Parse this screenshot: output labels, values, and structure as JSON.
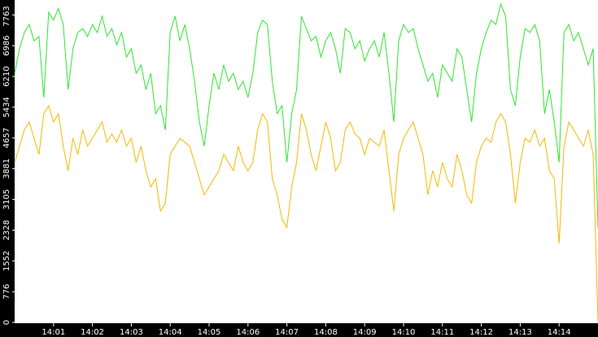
{
  "chart_data": {
    "type": "line",
    "x": [
      0,
      0.125,
      0.25,
      0.375,
      0.5,
      0.625,
      0.75,
      0.875,
      1,
      1.125,
      1.25,
      1.375,
      1.5,
      1.625,
      1.75,
      1.875,
      2,
      2.125,
      2.25,
      2.375,
      2.5,
      2.625,
      2.75,
      2.875,
      3,
      3.125,
      3.25,
      3.375,
      3.5,
      3.625,
      3.75,
      3.875,
      4,
      4.125,
      4.25,
      4.375,
      4.5,
      4.625,
      4.75,
      4.875,
      5,
      5.125,
      5.25,
      5.375,
      5.5,
      5.625,
      5.75,
      5.875,
      6,
      6.125,
      6.25,
      6.375,
      6.5,
      6.625,
      6.75,
      6.875,
      7,
      7.125,
      7.25,
      7.375,
      7.5,
      7.625,
      7.75,
      7.875,
      8,
      8.125,
      8.25,
      8.375,
      8.5,
      8.625,
      8.75,
      8.875,
      9,
      9.125,
      9.25,
      9.375,
      9.5,
      9.625,
      9.75,
      9.875,
      10,
      10.125,
      10.25,
      10.375,
      10.5,
      10.625,
      10.75,
      10.875,
      11,
      11.125,
      11.25,
      11.375,
      11.5,
      11.625,
      11.75,
      11.875,
      12,
      12.125,
      12.25,
      12.375,
      12.5,
      12.625,
      12.75,
      12.875,
      13,
      13.125,
      13.25,
      13.375,
      13.5,
      13.625,
      13.75,
      13.875,
      14,
      14.125,
      14.25,
      14.375,
      14.5,
      14.625,
      14.75,
      14.875,
      15
    ],
    "series": [
      {
        "color": "#2ee62e",
        "values": [
          6290,
          6910,
          7320,
          7520,
          7110,
          7220,
          5680,
          7830,
          7630,
          7930,
          7520,
          5880,
          6910,
          7320,
          7420,
          7220,
          7520,
          7320,
          7730,
          7220,
          7420,
          7010,
          7320,
          6700,
          6910,
          6290,
          6500,
          5880,
          6290,
          5270,
          5470,
          4860,
          7320,
          7730,
          7110,
          7520,
          6910,
          6090,
          5060,
          4450,
          5470,
          6290,
          5880,
          6500,
          6090,
          6290,
          5880,
          6090,
          5680,
          6290,
          7320,
          7630,
          7520,
          6090,
          5270,
          5470,
          4040,
          5270,
          5880,
          7730,
          7420,
          7110,
          7220,
          6700,
          7110,
          7320,
          6910,
          6290,
          7420,
          7320,
          6910,
          7110,
          6600,
          6910,
          7110,
          6700,
          7320,
          6290,
          5060,
          7110,
          7520,
          7320,
          7420,
          6910,
          6500,
          6090,
          6290,
          5680,
          6500,
          6290,
          6090,
          6910,
          6700,
          5880,
          5060,
          6290,
          6910,
          7320,
          7630,
          7520,
          8040,
          7730,
          5880,
          5470,
          6700,
          7420,
          7320,
          7520,
          7110,
          5270,
          5880,
          5060,
          4040,
          7320,
          7520,
          7110,
          7320,
          6910,
          6500,
          6910,
          2400
        ]
      },
      {
        "color": "#f5b800",
        "values": [
          4040,
          4450,
          4860,
          5060,
          4650,
          4240,
          5270,
          5470,
          5060,
          5270,
          4450,
          3830,
          4650,
          4240,
          4860,
          4450,
          4650,
          4860,
          5060,
          4550,
          4760,
          4550,
          4860,
          4450,
          4650,
          4040,
          4450,
          3830,
          3420,
          3630,
          2810,
          3010,
          4240,
          4450,
          4650,
          4550,
          4450,
          4040,
          3630,
          3220,
          3420,
          3630,
          3830,
          4240,
          4040,
          3830,
          4450,
          4040,
          3830,
          4040,
          4860,
          5270,
          5060,
          3630,
          3220,
          2600,
          2400,
          3420,
          4040,
          5270,
          4860,
          4240,
          3830,
          4450,
          5060,
          4650,
          3830,
          4040,
          4860,
          5060,
          4760,
          4650,
          4240,
          4650,
          4550,
          4450,
          4860,
          3830,
          2810,
          4240,
          4650,
          4860,
          5060,
          4650,
          4240,
          3220,
          3830,
          3420,
          4040,
          3630,
          3420,
          4240,
          3830,
          3220,
          3010,
          4040,
          4450,
          4650,
          4550,
          5060,
          5270,
          5060,
          4240,
          3010,
          4040,
          4650,
          4550,
          4860,
          4450,
          4650,
          3830,
          3630,
          1990,
          4450,
          5060,
          4860,
          4650,
          4450,
          4860,
          4240,
          0
        ]
      }
    ],
    "xlim": [
      0,
      15
    ],
    "xticks": [
      {
        "value": 1,
        "label": "14:01"
      },
      {
        "value": 2,
        "label": "14:02"
      },
      {
        "value": 3,
        "label": "14:03"
      },
      {
        "value": 4,
        "label": "14:04"
      },
      {
        "value": 5,
        "label": "14:05"
      },
      {
        "value": 6,
        "label": "14:06"
      },
      {
        "value": 7,
        "label": "14:07"
      },
      {
        "value": 8,
        "label": "14:08"
      },
      {
        "value": 9,
        "label": "14:09"
      },
      {
        "value": 10,
        "label": "14:10"
      },
      {
        "value": 11,
        "label": "14:11"
      },
      {
        "value": 12,
        "label": "14:12"
      },
      {
        "value": 13,
        "label": "14:13"
      },
      {
        "value": 14,
        "label": "14:14"
      }
    ],
    "ylim": [
      0,
      8140
    ],
    "yticks": [
      0,
      776,
      1552,
      2328,
      3105,
      3881,
      4657,
      5434,
      6210,
      6986,
      7763
    ]
  }
}
